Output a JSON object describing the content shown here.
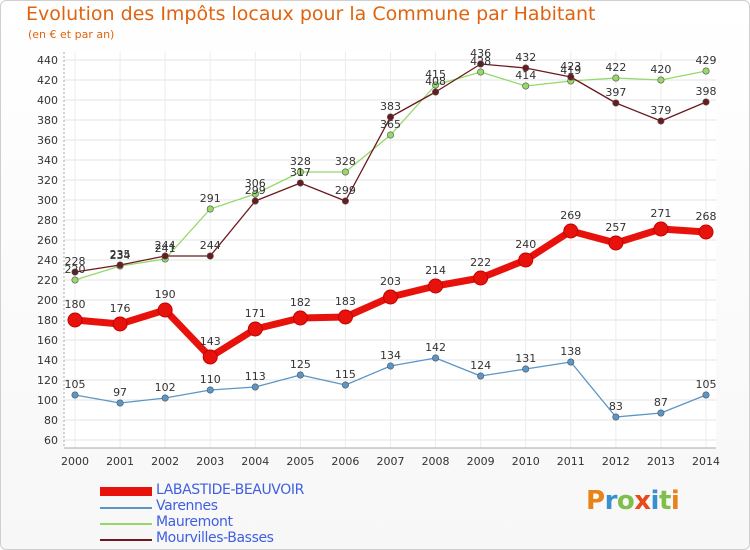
{
  "title": "Evolution des Impôts locaux pour la Commune par Habitant",
  "subtitle": "(en € et par an)",
  "brand": "Proxiti",
  "chart_data": {
    "type": "line",
    "title": "Evolution des Impôts locaux pour la Commune par Habitant",
    "subtitle": "(en € et par an)",
    "x": [
      "2000",
      "2001",
      "2002",
      "2003",
      "2004",
      "2005",
      "2006",
      "2007",
      "2008",
      "2009",
      "2010",
      "2011",
      "2012",
      "2013",
      "2014"
    ],
    "ylim": [
      60,
      440
    ],
    "yticks": [
      60,
      80,
      100,
      120,
      140,
      160,
      180,
      200,
      220,
      240,
      260,
      280,
      300,
      320,
      340,
      360,
      380,
      400,
      420,
      440
    ],
    "grid": true,
    "legend_position": "bottom-left",
    "series": [
      {
        "name": "LABASTIDE-BEAUVOIR",
        "color": "#e8120c",
        "values": [
          180,
          176,
          190,
          143,
          171,
          182,
          183,
          203,
          214,
          222,
          240,
          269,
          257,
          271,
          268
        ]
      },
      {
        "name": "Varennes",
        "color": "#5b96c8",
        "values": [
          105,
          97,
          102,
          110,
          113,
          125,
          115,
          134,
          142,
          124,
          131,
          138,
          83,
          87,
          105
        ]
      },
      {
        "name": "Mauremont",
        "color": "#96d86a",
        "values": [
          220,
          234,
          241,
          291,
          306,
          328,
          328,
          365,
          415,
          428,
          414,
          419,
          422,
          420,
          429
        ]
      },
      {
        "name": "Mourvilles-Basses",
        "color": "#6b1a1e",
        "values": [
          228,
          235,
          244,
          244,
          299,
          317,
          299,
          383,
          408,
          436,
          432,
          423,
          397,
          379,
          398
        ]
      }
    ]
  }
}
